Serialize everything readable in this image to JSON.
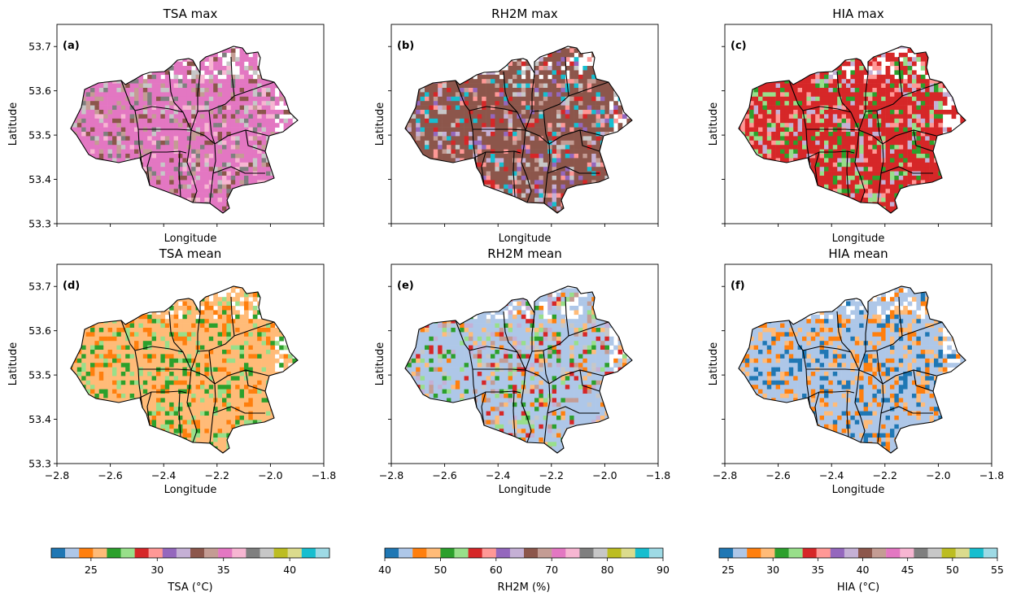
{
  "figure": {
    "panels": [
      {
        "title": "TSA max",
        "letter": "(a)",
        "xlabel": "Longitude",
        "ylabel": "Latitude",
        "field": "tsa",
        "stat": "max"
      },
      {
        "title": "RH2M max",
        "letter": "(b)",
        "xlabel": "Longitude",
        "ylabel": "Latitude",
        "field": "rh2m",
        "stat": "max"
      },
      {
        "title": "HIA max",
        "letter": "(c)",
        "xlabel": "Longitude",
        "ylabel": "Latitude",
        "field": "hia",
        "stat": "max"
      },
      {
        "title": "TSA mean",
        "letter": "(d)",
        "xlabel": "Longitude",
        "ylabel": "Latitude",
        "field": "tsa",
        "stat": "mean"
      },
      {
        "title": "RH2M mean",
        "letter": "(e)",
        "xlabel": "Longitude",
        "ylabel": "Latitude",
        "field": "rh2m",
        "stat": "mean"
      },
      {
        "title": "HIA mean",
        "letter": "(f)",
        "xlabel": "Longitude",
        "ylabel": "Latitude",
        "field": "hia",
        "stat": "mean"
      }
    ],
    "x_ticks": [
      "−2.8",
      "−2.6",
      "−2.4",
      "−2.2",
      "−2.0",
      "−1.8"
    ],
    "y_ticks": [
      "53.3",
      "53.4",
      "53.5",
      "53.6",
      "53.7"
    ],
    "xlim": [
      -2.8,
      -1.8
    ],
    "ylim": [
      53.3,
      53.75
    ],
    "colorbars": [
      {
        "label": "TSA (°C)",
        "range": [
          22,
          43
        ],
        "ticks": [
          "25",
          "30",
          "35",
          "40"
        ]
      },
      {
        "label": "RH2M (%)",
        "range": [
          40,
          90
        ],
        "ticks": [
          "40",
          "50",
          "60",
          "70",
          "80",
          "90"
        ]
      },
      {
        "label": "HIA (°C)",
        "range": [
          24,
          55
        ],
        "ticks": [
          "25",
          "30",
          "35",
          "40",
          "45",
          "50",
          "55"
        ]
      }
    ],
    "colormap": [
      "#1f77b4",
      "#aec7e8",
      "#ff7f0e",
      "#ffbb78",
      "#2ca02c",
      "#98df8a",
      "#d62728",
      "#ff9896",
      "#9467bd",
      "#c5b0d5",
      "#8c564b",
      "#c49c94",
      "#e377c2",
      "#f7b6d2",
      "#7f7f7f",
      "#c7c7c7",
      "#bcbd22",
      "#dbdb8d",
      "#17becf",
      "#9edae5"
    ]
  }
}
